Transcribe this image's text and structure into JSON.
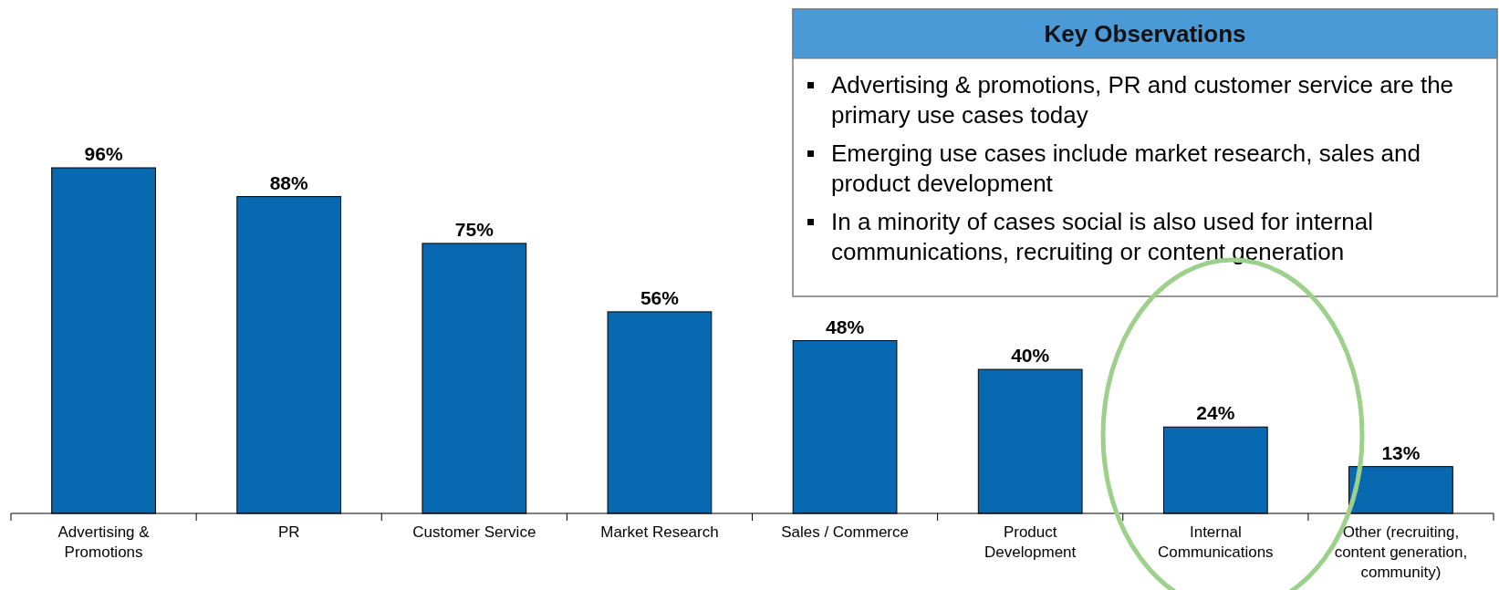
{
  "chart_data": {
    "type": "bar",
    "categories": [
      "Advertising & Promotions",
      "PR",
      "Customer Service",
      "Market Research",
      "Sales / Commerce",
      "Product Development",
      "Internal Communications",
      "Other (recruiting, content generation, community)"
    ],
    "values": [
      96,
      88,
      75,
      56,
      48,
      40,
      24,
      13
    ],
    "color": "#0868b0",
    "value_labels": [
      "96%",
      "88%",
      "75%",
      "56%",
      "48%",
      "40%",
      "24%",
      "13%"
    ],
    "annotations": [
      "Key Observations",
      "Advertising & promotions, PR and customer service are the primary use cases today",
      "Emerging use cases include market research, sales and product development",
      "In a minority of cases social is also used for internal communications, recruiting or content generation"
    ]
  }
}
